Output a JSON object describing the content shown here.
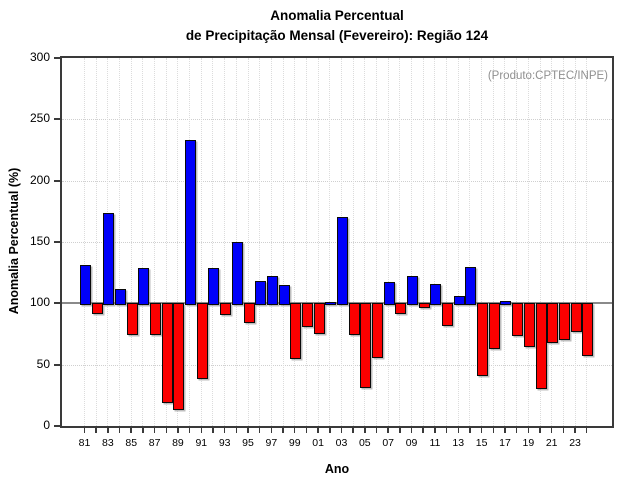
{
  "title_line1": "Anomalia Percentual",
  "title_line2": "de Precipitação Mensal (Fevereiro): Região 124",
  "annotation": "(Produto:CPTEC/INPE)",
  "chart_data": {
    "type": "bar",
    "title": "Anomalia Percentual de Precipitação Mensal (Fevereiro): Região 124",
    "xlabel": "Ano",
    "ylabel": "Anomalia Percentual (%)",
    "ylim": [
      0,
      300
    ],
    "yticks": [
      0,
      50,
      100,
      150,
      200,
      250,
      300
    ],
    "baseline": 100,
    "grid": "dotted",
    "legend": "none",
    "colors": {
      "above_baseline": "#0000fa",
      "below_baseline": "#fb0000"
    },
    "categories": [
      "81",
      "82",
      "83",
      "84",
      "85",
      "86",
      "87",
      "88",
      "89",
      "90",
      "91",
      "92",
      "93",
      "94",
      "95",
      "96",
      "97",
      "98",
      "99",
      "00",
      "01",
      "02",
      "03",
      "04",
      "05",
      "06",
      "07",
      "08",
      "09",
      "10",
      "11",
      "12",
      "13",
      "14",
      "15",
      "16",
      "17",
      "18",
      "19",
      "20",
      "21",
      "22",
      "23",
      "24"
    ],
    "labeled_ticks": [
      "81",
      "83",
      "85",
      "87",
      "89",
      "91",
      "93",
      "95",
      "97",
      "99",
      "01",
      "03",
      "05",
      "07",
      "09",
      "11",
      "13",
      "15",
      "17",
      "19",
      "21",
      "23"
    ],
    "values": [
      131,
      93,
      174,
      112,
      76,
      129,
      76,
      20,
      15,
      233,
      40,
      129,
      92,
      150,
      86,
      118,
      122,
      115,
      56,
      82,
      77,
      101,
      170,
      76,
      33,
      57,
      117,
      93,
      122,
      98,
      116,
      83,
      106,
      130,
      42,
      64,
      102,
      75,
      66,
      32,
      69,
      72,
      78,
      59
    ]
  }
}
